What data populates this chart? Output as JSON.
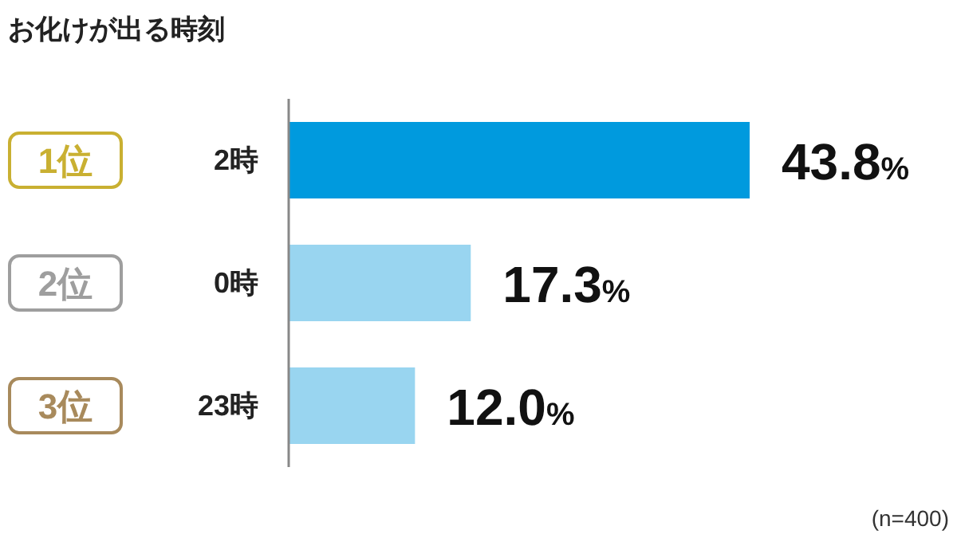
{
  "chart_data": {
    "type": "bar",
    "orientation": "horizontal",
    "title": "お化けが出る時刻",
    "categories": [
      "2時",
      "0時",
      "23時"
    ],
    "values": [
      43.8,
      17.3,
      12.0
    ],
    "colors": [
      "#009ade",
      "#99d5f0",
      "#99d5f0"
    ],
    "value_labels": [
      "43.8%",
      "17.3%",
      "12.0%"
    ],
    "annotations": [
      "1位",
      "2位",
      "3位",
      "(n=400)"
    ]
  }
}
